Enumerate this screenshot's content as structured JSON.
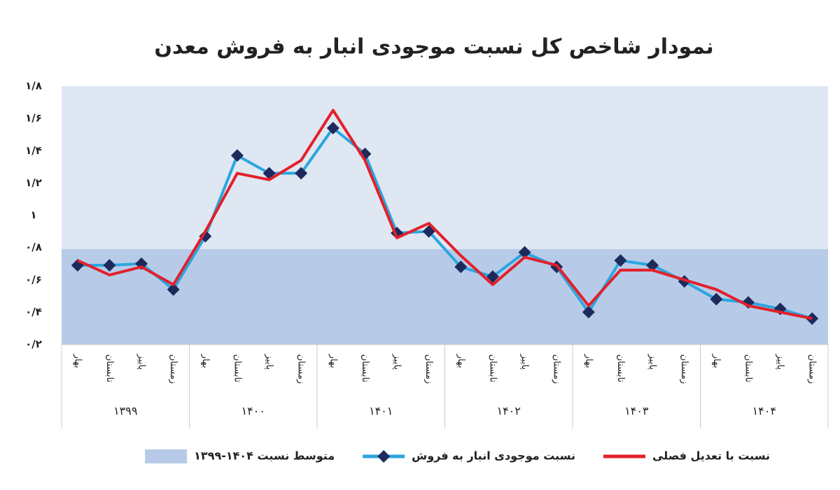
{
  "chart_data": {
    "type": "line",
    "title": "نمودار شاخص کل نسبت موجودی انبار به فروش معدن",
    "categories": [
      "بهار",
      "تابستان",
      "پاییز",
      "زمستان",
      "بهار",
      "تابستان",
      "پاییز",
      "زمستان",
      "بهار",
      "تابستان",
      "پاییز",
      "زمستان",
      "بهار",
      "تابستان",
      "پاییز",
      "زمستان",
      "بهار",
      "تابستان",
      "پاییز",
      "زمستان",
      "بهار",
      "تابستان",
      "پاییز",
      "زمستان"
    ],
    "groups": [
      "۱۳۹۹",
      "۱۴۰۰",
      "۱۴۰۱",
      "۱۴۰۲",
      "۱۴۰۳",
      "۱۴۰۴"
    ],
    "series": [
      {
        "name": "نسبت با تعدیل فصلی",
        "color": "#e3202a",
        "marker": false,
        "values": [
          0.72,
          0.63,
          0.68,
          0.57,
          0.9,
          1.26,
          1.22,
          1.34,
          1.65,
          1.34,
          0.86,
          0.95,
          0.75,
          0.57,
          0.74,
          0.69,
          0.44,
          0.66,
          0.66,
          0.6,
          0.54,
          0.44,
          0.4,
          0.36
        ]
      },
      {
        "name": "نسبت موجودی انبار به فروش",
        "color": "#2ba6df",
        "marker": true,
        "marker_color": "#1f2a5c",
        "values": [
          0.69,
          0.69,
          0.7,
          0.54,
          0.87,
          1.37,
          1.26,
          1.26,
          1.54,
          1.38,
          0.89,
          0.9,
          0.68,
          0.62,
          0.77,
          0.68,
          0.4,
          0.72,
          0.69,
          0.59,
          0.48,
          0.46,
          0.42,
          0.36
        ]
      }
    ],
    "average": {
      "name": "متوسط نسبت ۱۴۰۴-۱۳۹۹",
      "value": 0.79,
      "color": "#b7cbe8"
    },
    "background": "#dfe7f3",
    "ylim": [
      0.2,
      1.8
    ],
    "yticks": [
      {
        "value": 0.2,
        "label": "۰/۲"
      },
      {
        "value": 0.4,
        "label": "۰/۴"
      },
      {
        "value": 0.6,
        "label": "۰/۶"
      },
      {
        "value": 0.8,
        "label": "۰/۸"
      },
      {
        "value": 1,
        "label": "۱"
      },
      {
        "value": 1.2,
        "label": "۱/۲"
      },
      {
        "value": 1.4,
        "label": "۱/۴"
      },
      {
        "value": 1.6,
        "label": "۱/۶"
      },
      {
        "value": 1.8,
        "label": "۱/۸"
      }
    ]
  }
}
